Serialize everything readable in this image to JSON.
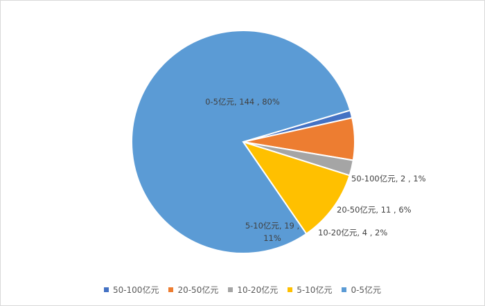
{
  "chart_data": {
    "type": "pie",
    "title": "",
    "slices": [
      {
        "label": "50-100亿元",
        "value": 2,
        "percent": "1%",
        "color": "#4472C4",
        "data_label_line1": "50-100亿元, 2 , 1%",
        "data_label_line2": ""
      },
      {
        "label": "20-50亿元",
        "value": 11,
        "percent": "6%",
        "color": "#ED7D31",
        "data_label_line1": "20-50亿元, 11 , 6%",
        "data_label_line2": ""
      },
      {
        "label": "10-20亿元",
        "value": 4,
        "percent": "2%",
        "color": "#A5A5A5",
        "data_label_line1": "10-20亿元, 4 , 2%",
        "data_label_line2": ""
      },
      {
        "label": "5-10亿元",
        "value": 19,
        "percent": "11%",
        "color": "#FFC000",
        "data_label_line1": "5-10亿元, 19 ,",
        "data_label_line2": "11%"
      },
      {
        "label": "0-5亿元",
        "value": 144,
        "percent": "80%",
        "color": "#5B9BD5",
        "data_label_line1": "0-5亿元, 144 , 80%",
        "data_label_line2": ""
      }
    ],
    "legend_position": "bottom",
    "start_angle": "12 o'clock",
    "direction": "clockwise"
  }
}
